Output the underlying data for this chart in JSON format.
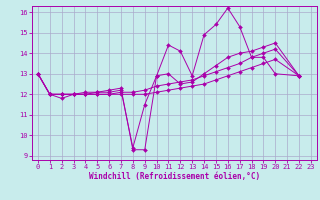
{
  "xlabel": "Windchill (Refroidissement éolien,°C)",
  "bg_color": "#c8ecec",
  "grid_color": "#aaaacc",
  "line_color": "#aa00aa",
  "xlim": [
    -0.5,
    23.5
  ],
  "ylim": [
    8.8,
    16.3
  ],
  "xticks": [
    0,
    1,
    2,
    3,
    4,
    5,
    6,
    7,
    8,
    9,
    10,
    11,
    12,
    13,
    14,
    15,
    16,
    17,
    18,
    19,
    20,
    21,
    22,
    23
  ],
  "yticks": [
    9,
    10,
    11,
    12,
    13,
    14,
    15,
    16
  ],
  "series": [
    {
      "x": [
        0,
        1,
        2,
        3,
        4,
        5,
        6,
        7,
        8,
        9,
        10,
        11,
        12,
        13,
        14,
        15,
        16,
        17,
        18,
        19,
        20,
        22
      ],
      "y": [
        13.0,
        12.0,
        11.8,
        12.0,
        12.0,
        12.1,
        12.1,
        12.2,
        9.4,
        11.5,
        12.9,
        14.4,
        14.1,
        12.9,
        14.9,
        15.4,
        16.2,
        15.3,
        13.8,
        13.8,
        13.0,
        12.9
      ]
    },
    {
      "x": [
        0,
        1,
        2,
        3,
        4,
        5,
        6,
        7,
        8,
        9,
        10,
        11,
        12,
        13,
        14,
        15,
        16,
        17,
        18,
        19,
        20,
        22
      ],
      "y": [
        13.0,
        12.0,
        12.0,
        12.0,
        12.1,
        12.1,
        12.2,
        12.3,
        9.3,
        9.3,
        12.9,
        13.0,
        12.5,
        12.6,
        13.0,
        13.4,
        13.8,
        14.0,
        14.1,
        14.3,
        14.5,
        12.9
      ]
    },
    {
      "x": [
        0,
        1,
        2,
        3,
        4,
        5,
        6,
        7,
        8,
        9,
        10,
        11,
        12,
        13,
        14,
        15,
        16,
        17,
        18,
        19,
        20,
        22
      ],
      "y": [
        13.0,
        12.0,
        12.0,
        12.0,
        12.0,
        12.0,
        12.0,
        12.1,
        12.1,
        12.2,
        12.4,
        12.5,
        12.6,
        12.7,
        12.9,
        13.1,
        13.3,
        13.5,
        13.8,
        14.0,
        14.2,
        12.9
      ]
    },
    {
      "x": [
        0,
        1,
        2,
        3,
        4,
        5,
        6,
        7,
        8,
        9,
        10,
        11,
        12,
        13,
        14,
        15,
        16,
        17,
        18,
        19,
        20,
        22
      ],
      "y": [
        13.0,
        12.0,
        12.0,
        12.0,
        12.0,
        12.0,
        12.0,
        12.0,
        12.0,
        12.0,
        12.1,
        12.2,
        12.3,
        12.4,
        12.5,
        12.7,
        12.9,
        13.1,
        13.3,
        13.5,
        13.7,
        12.9
      ]
    }
  ]
}
